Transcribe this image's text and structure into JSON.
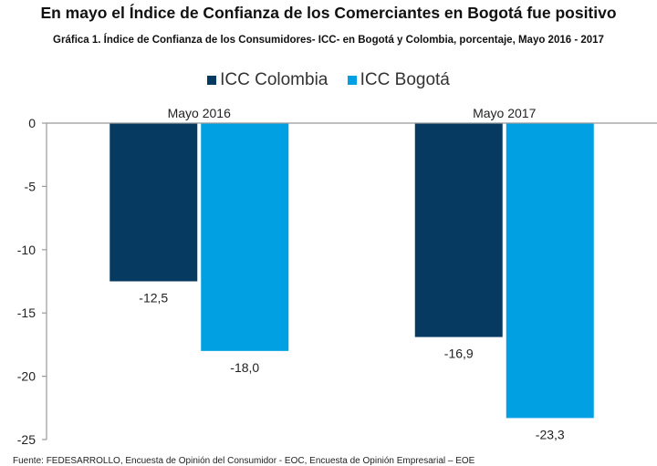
{
  "title": "En mayo el Índice de Confianza de los Comerciantes en Bogotá fue positivo",
  "chart_data": {
    "type": "bar",
    "title": "Gráfica 1.  Índice de Confianza de los Consumidores- ICC- en Bogotá y Colombia, porcentaje, Mayo 2016 - 2017",
    "categories": [
      "Mayo 2016",
      "Mayo 2017"
    ],
    "series": [
      {
        "name": "ICC Colombia",
        "values": [
          -12.5,
          -16.9
        ],
        "labels": [
          "-12,5",
          "-16,9"
        ],
        "color": "#073a60"
      },
      {
        "name": "ICC Bogotá",
        "values": [
          -18.0,
          -23.3
        ],
        "labels": [
          "-18,0",
          "-23,3"
        ],
        "color": "#00a0e3"
      }
    ],
    "ylim": [
      -25,
      0
    ],
    "yticks": [
      "0",
      "-5",
      "-10",
      "-15",
      "-20",
      "-25"
    ],
    "yticks_values": [
      0,
      -5,
      -10,
      -15,
      -20,
      -25
    ],
    "xlabel": "",
    "ylabel": "",
    "legend_position": "top",
    "grid": false
  },
  "source": "Fuente: FEDESARROLLO, Encuesta de Opinión del Consumidor - EOC, Encuesta de Opinión Empresarial – EOE"
}
